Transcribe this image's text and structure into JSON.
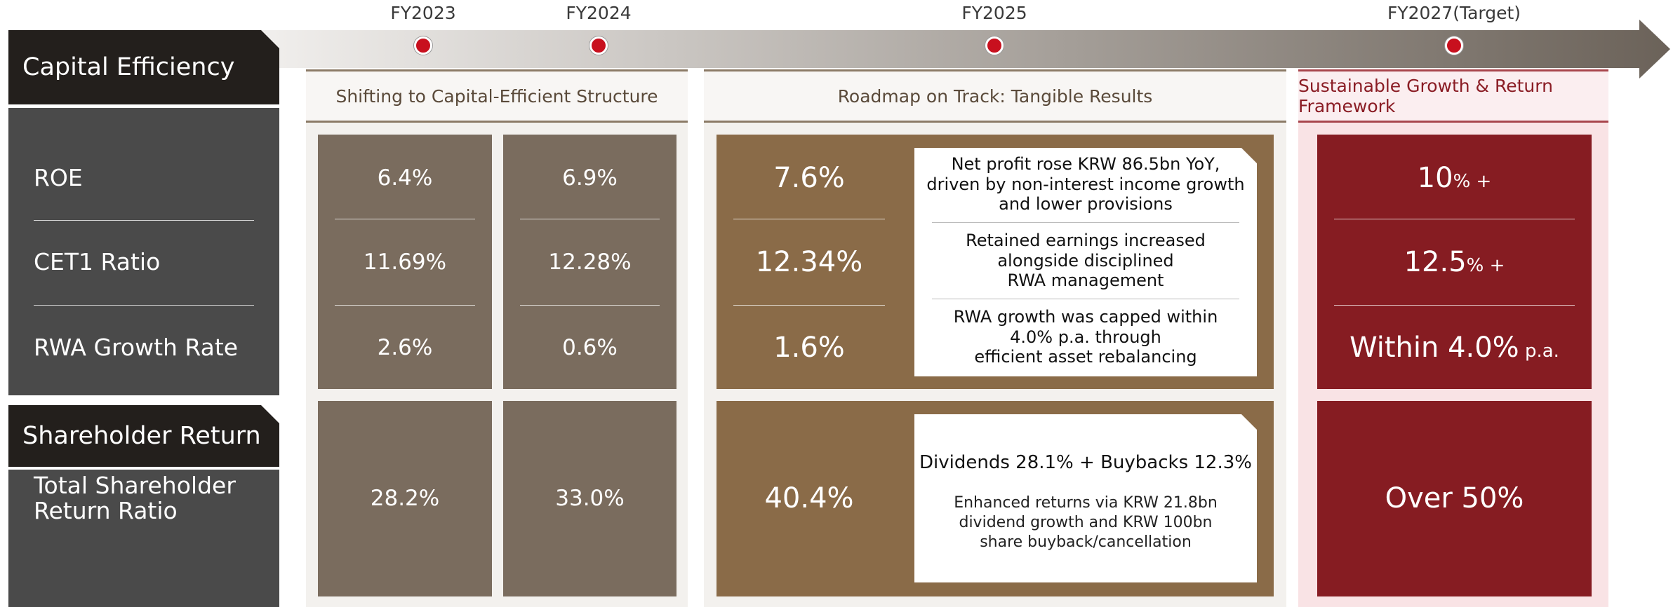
{
  "timeline": [
    "FY2023",
    "FY2024",
    "FY2025",
    "FY2027(Target)"
  ],
  "sections": [
    {
      "title": "Capital Efficiency",
      "metrics": [
        "ROE",
        "CET1 Ratio",
        "RWA Growth Rate"
      ]
    },
    {
      "title": "Shareholder Return",
      "metrics": [
        "Total Shareholder Return Ratio"
      ]
    }
  ],
  "columns": [
    {
      "header": "Shifting to Capital-Efficient Structure"
    },
    {
      "header": "Roadmap on Track: Tangible Results"
    },
    {
      "header": "Sustainable Growth & Return Framework"
    }
  ],
  "values": {
    "FY2023": [
      "6.4%",
      "11.69%",
      "2.6%",
      "28.2%"
    ],
    "FY2024": [
      "6.9%",
      "12.28%",
      "0.6%",
      "33.0%"
    ],
    "FY2025": [
      "7.6%",
      "12.34%",
      "1.6%",
      "40.4%"
    ],
    "FY2027": [
      {
        "main": "10",
        "suffix": "% +"
      },
      {
        "main": "12.5",
        "suffix": "% +"
      },
      {
        "main": "Within 4.0%",
        "suffix": " p.a."
      },
      {
        "main": "Over 50%",
        "suffix": ""
      }
    ]
  },
  "notes": [
    [
      "Net profit rose KRW 86.5bn YoY,",
      "driven by non-interest income growth",
      "and lower provisions"
    ],
    [
      "Retained earnings increased",
      "alongside disciplined",
      "RWA management"
    ],
    [
      "RWA growth was capped within",
      "4.0% p.a. through",
      "efficient asset rebalancing"
    ]
  ],
  "return_note": {
    "headline": "Dividends 28.1% + Buybacks 12.3%",
    "lines": [
      "Enhanced returns via KRW 21.8bn",
      "dividend growth and KRW 100bn",
      "share buyback/cancellation"
    ]
  }
}
